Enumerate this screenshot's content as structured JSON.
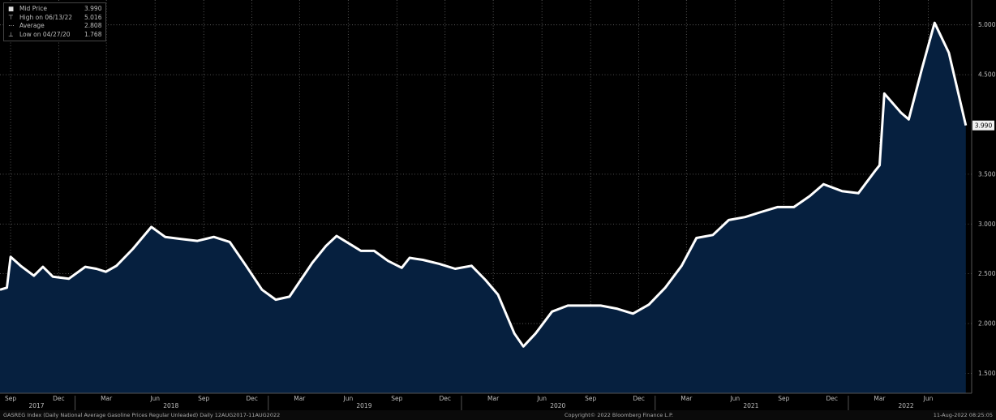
{
  "legend": {
    "items": [
      {
        "marker": "■",
        "label": "Mid Price",
        "value": "3.990"
      },
      {
        "marker": "⊤",
        "label": "High on 06/13/22",
        "value": "5.016"
      },
      {
        "marker": "⋯",
        "label": "Average",
        "value": "2.808"
      },
      {
        "marker": "⊥",
        "label": "Low on 04/27/20",
        "value": "1.768"
      }
    ]
  },
  "footer": {
    "left": "GASREG Index (Daily National Average Gasoline Prices Regular Unleaded)  Daily 12AUG2017-11AUG2022",
    "center": "Copyright© 2022 Bloomberg Finance L.P.",
    "right": "11-Aug-2022 08:25:05"
  },
  "chart_data": {
    "type": "area",
    "x_months": [
      "Sep",
      "Dec",
      "Mar",
      "Jun",
      "Sep",
      "Dec",
      "Mar",
      "Jun",
      "Sep",
      "Dec",
      "Mar",
      "Jun",
      "Sep",
      "Dec",
      "Mar",
      "Jun",
      "Sep",
      "Dec",
      "Mar",
      "Jun"
    ],
    "x_years": [
      "2017",
      "2018",
      "2019",
      "2020",
      "2021",
      "2022"
    ],
    "y_ticks": [
      "5.000",
      "4.500",
      "3.500",
      "3.000",
      "2.500",
      "2.000",
      "1.500"
    ],
    "last_value_label": "3.990",
    "ylim": [
      1.3,
      5.25
    ],
    "series": [
      {
        "x": [
          "2017-08-12",
          "2017-08-25",
          "2017-09-01",
          "2017-09-20",
          "2017-10-15",
          "2017-11-01",
          "2017-11-20",
          "2017-12-20",
          "2018-01-20",
          "2018-02-10",
          "2018-02-28",
          "2018-03-20",
          "2018-04-20",
          "2018-05-25",
          "2018-06-20",
          "2018-07-20",
          "2018-08-20",
          "2018-09-20",
          "2018-10-20",
          "2018-11-20",
          "2018-12-20",
          "2019-01-15",
          "2019-02-10",
          "2019-03-01",
          "2019-03-25",
          "2019-04-20",
          "2019-05-10",
          "2019-06-10",
          "2019-06-25",
          "2019-07-20",
          "2019-08-15",
          "2019-09-10",
          "2019-09-25",
          "2019-10-20",
          "2019-11-20",
          "2019-12-20",
          "2020-01-20",
          "2020-02-15",
          "2020-03-10",
          "2020-04-10",
          "2020-04-27",
          "2020-05-20",
          "2020-06-20",
          "2020-07-20",
          "2020-08-20",
          "2020-09-20",
          "2020-10-20",
          "2020-11-20",
          "2020-12-20",
          "2021-01-20",
          "2021-02-20",
          "2021-03-20",
          "2021-04-20",
          "2021-05-20",
          "2021-06-20",
          "2021-07-20",
          "2021-08-20",
          "2021-09-20",
          "2021-10-20",
          "2021-11-15",
          "2021-12-20",
          "2022-01-20",
          "2022-02-20",
          "2022-03-01",
          "2022-03-10",
          "2022-04-10",
          "2022-04-25",
          "2022-05-20",
          "2022-06-13",
          "2022-07-10",
          "2022-08-11"
        ],
        "y": [
          2.34,
          2.36,
          2.67,
          2.58,
          2.48,
          2.57,
          2.47,
          2.45,
          2.57,
          2.55,
          2.52,
          2.58,
          2.75,
          2.97,
          2.87,
          2.85,
          2.83,
          2.87,
          2.82,
          2.58,
          2.34,
          2.24,
          2.27,
          2.42,
          2.61,
          2.78,
          2.88,
          2.78,
          2.73,
          2.73,
          2.63,
          2.56,
          2.66,
          2.64,
          2.6,
          2.55,
          2.58,
          2.44,
          2.29,
          1.9,
          1.77,
          1.9,
          2.12,
          2.18,
          2.18,
          2.18,
          2.15,
          2.1,
          2.19,
          2.36,
          2.58,
          2.86,
          2.89,
          3.04,
          3.07,
          3.12,
          3.17,
          3.17,
          3.28,
          3.4,
          3.33,
          3.31,
          3.53,
          3.59,
          4.31,
          4.12,
          4.05,
          4.56,
          5.02,
          4.72,
          3.99
        ]
      }
    ]
  }
}
